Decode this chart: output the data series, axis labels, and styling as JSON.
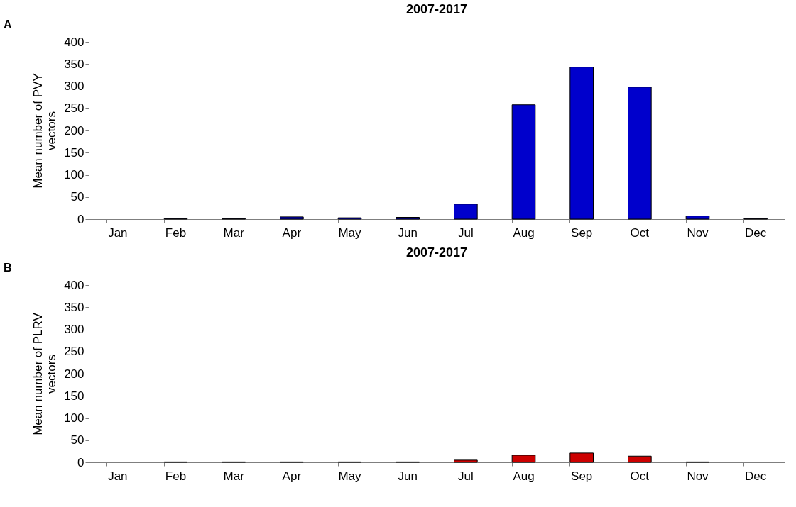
{
  "chart_data": [
    {
      "type": "bar",
      "title": "2007-2017",
      "ylabel": "Mean number  of PVY vectors",
      "annotations": [
        "A"
      ],
      "categories": [
        "Jan",
        "Feb",
        "Mar",
        "Apr",
        "May",
        "Jun",
        "Jul",
        "Aug",
        "Sep",
        "Oct",
        "Nov",
        "Dec"
      ],
      "values": [
        0,
        1,
        1,
        5,
        3,
        4,
        34,
        258,
        343,
        298,
        7,
        1
      ],
      "color": "#0000cc",
      "ylim": [
        0,
        400
      ],
      "yticks": [
        0,
        50,
        100,
        150,
        200,
        250,
        300,
        350,
        400
      ],
      "grid": false
    },
    {
      "type": "bar",
      "title": "2007-2017",
      "ylabel": "Mean number  of PLRV vectors",
      "annotations": [
        "B"
      ],
      "categories": [
        "Jan",
        "Feb",
        "Mar",
        "Apr",
        "May",
        "Jun",
        "Jul",
        "Aug",
        "Sep",
        "Oct",
        "Nov",
        "Dec"
      ],
      "values": [
        0,
        1,
        1,
        1,
        1,
        1,
        5,
        16,
        21,
        14,
        1,
        0
      ],
      "color": "#cc0000",
      "ylim": [
        0,
        400
      ],
      "yticks": [
        0,
        50,
        100,
        150,
        200,
        250,
        300,
        350,
        400
      ],
      "grid": false
    }
  ]
}
